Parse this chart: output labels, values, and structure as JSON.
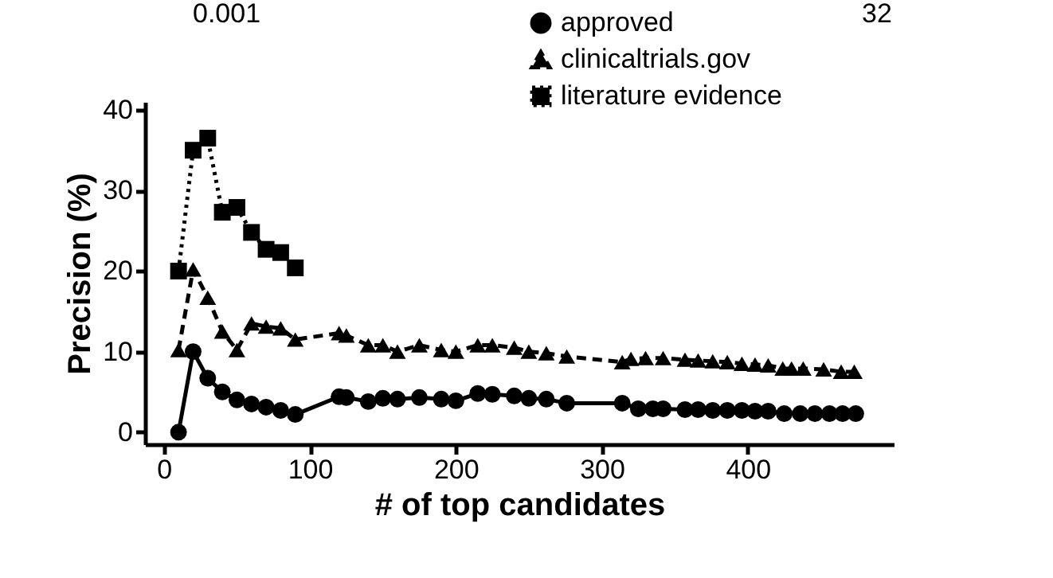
{
  "chart_data": {
    "type": "line",
    "xlabel": "# of top candidates",
    "ylabel": "Precision (%)",
    "annotations": [
      "0.001",
      "32"
    ],
    "xlim": [
      -13,
      500
    ],
    "ylim": [
      -1.5,
      41
    ],
    "xticks": [
      0,
      100,
      200,
      300,
      400
    ],
    "yticks": [
      0,
      10,
      20,
      30,
      40
    ],
    "grid": false,
    "legend": "top right",
    "series": [
      {
        "name": "approved",
        "color": "#000000",
        "marker": "circle",
        "line_style": "solid",
        "x": [
          10,
          20,
          30,
          40,
          50,
          60,
          70,
          80,
          90,
          120,
          125,
          140,
          150,
          160,
          175,
          190,
          200,
          215,
          225,
          240,
          250,
          262,
          276,
          314,
          325,
          335,
          342,
          357,
          366,
          376,
          386,
          396,
          405,
          414,
          425,
          436,
          446,
          456,
          465,
          474
        ],
        "values": [
          0,
          10,
          6.7,
          5.0,
          4.0,
          3.5,
          3.1,
          2.7,
          2.2,
          4.4,
          4.3,
          3.8,
          4.2,
          4.1,
          4.3,
          4.1,
          3.9,
          4.8,
          4.7,
          4.5,
          4.2,
          4.1,
          3.6,
          3.6,
          2.9,
          2.9,
          2.9,
          2.8,
          2.8,
          2.7,
          2.7,
          2.7,
          2.6,
          2.6,
          2.3,
          2.3,
          2.3,
          2.3,
          2.3,
          2.3
        ]
      },
      {
        "name": "clinicaltrials.gov",
        "color": "#000000",
        "marker": "triangle",
        "line_style": "dashed",
        "x": [
          10,
          20,
          30,
          40,
          50,
          60,
          70,
          80,
          90,
          120,
          125,
          140,
          150,
          160,
          175,
          190,
          200,
          215,
          225,
          240,
          250,
          262,
          276,
          314,
          320,
          330,
          342,
          357,
          366,
          376,
          386,
          396,
          405,
          414,
          424,
          430,
          438,
          452,
          464,
          473
        ],
        "values": [
          10.2,
          20.2,
          16.7,
          12.5,
          10.2,
          13.5,
          13.1,
          12.9,
          11.5,
          12.3,
          12.0,
          10.8,
          10.8,
          10.0,
          10.8,
          10.2,
          10.0,
          10.8,
          10.8,
          10.5,
          10.0,
          9.8,
          9.4,
          8.7,
          9.1,
          9.2,
          9.2,
          9.0,
          8.9,
          8.8,
          8.7,
          8.5,
          8.4,
          8.3,
          7.9,
          7.9,
          7.9,
          7.8,
          7.5,
          7.5
        ]
      },
      {
        "name": "literature evidence",
        "color": "#000000",
        "marker": "square",
        "line_style": "dotted",
        "x": [
          10,
          20,
          30,
          40,
          50,
          60,
          70,
          80,
          90
        ],
        "values": [
          20,
          35,
          36.5,
          27.3,
          27.9,
          24.8,
          22.7,
          22.3,
          20.4
        ]
      }
    ]
  }
}
